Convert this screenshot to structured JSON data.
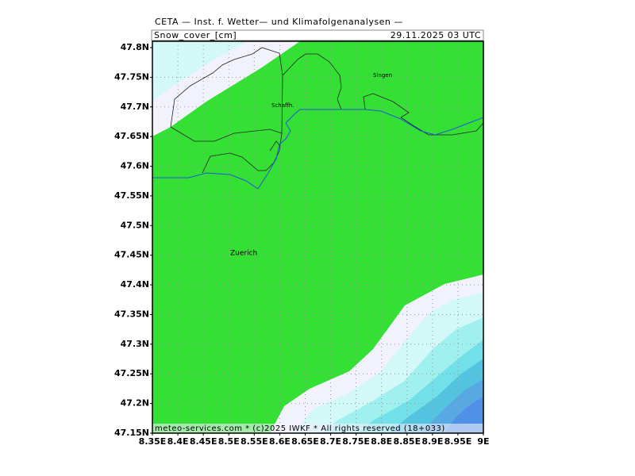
{
  "header": {
    "title": "CETA — Inst. f. Wetter— und Klimafolgenanalysen —",
    "variable": "Snow_cover_[cm]",
    "datetime": "29.11.2025 03 UTC"
  },
  "footer": "meteo-services.com * (c)2025 IWKF * All rights reserved (18+033)",
  "places": [
    {
      "label": "Singen"
    },
    {
      "label": "Schaffh."
    },
    {
      "label": "Zuerich"
    }
  ],
  "lat_labels": [
    "47.8N",
    "47.75N",
    "47.7N",
    "47.65N",
    "47.6N",
    "47.55N",
    "47.5N",
    "47.45N",
    "47.4N",
    "47.35N",
    "47.3N",
    "47.25N",
    "47.2N",
    "47.15N"
  ],
  "lon_labels": [
    "8.35E",
    "8.4E",
    "8.45E",
    "8.5E",
    "8.55E",
    "8.6E",
    "8.65E",
    "8.7E",
    "8.75E",
    "8.8E",
    "8.85E",
    "8.9E",
    "8.95E",
    "9E"
  ]
}
